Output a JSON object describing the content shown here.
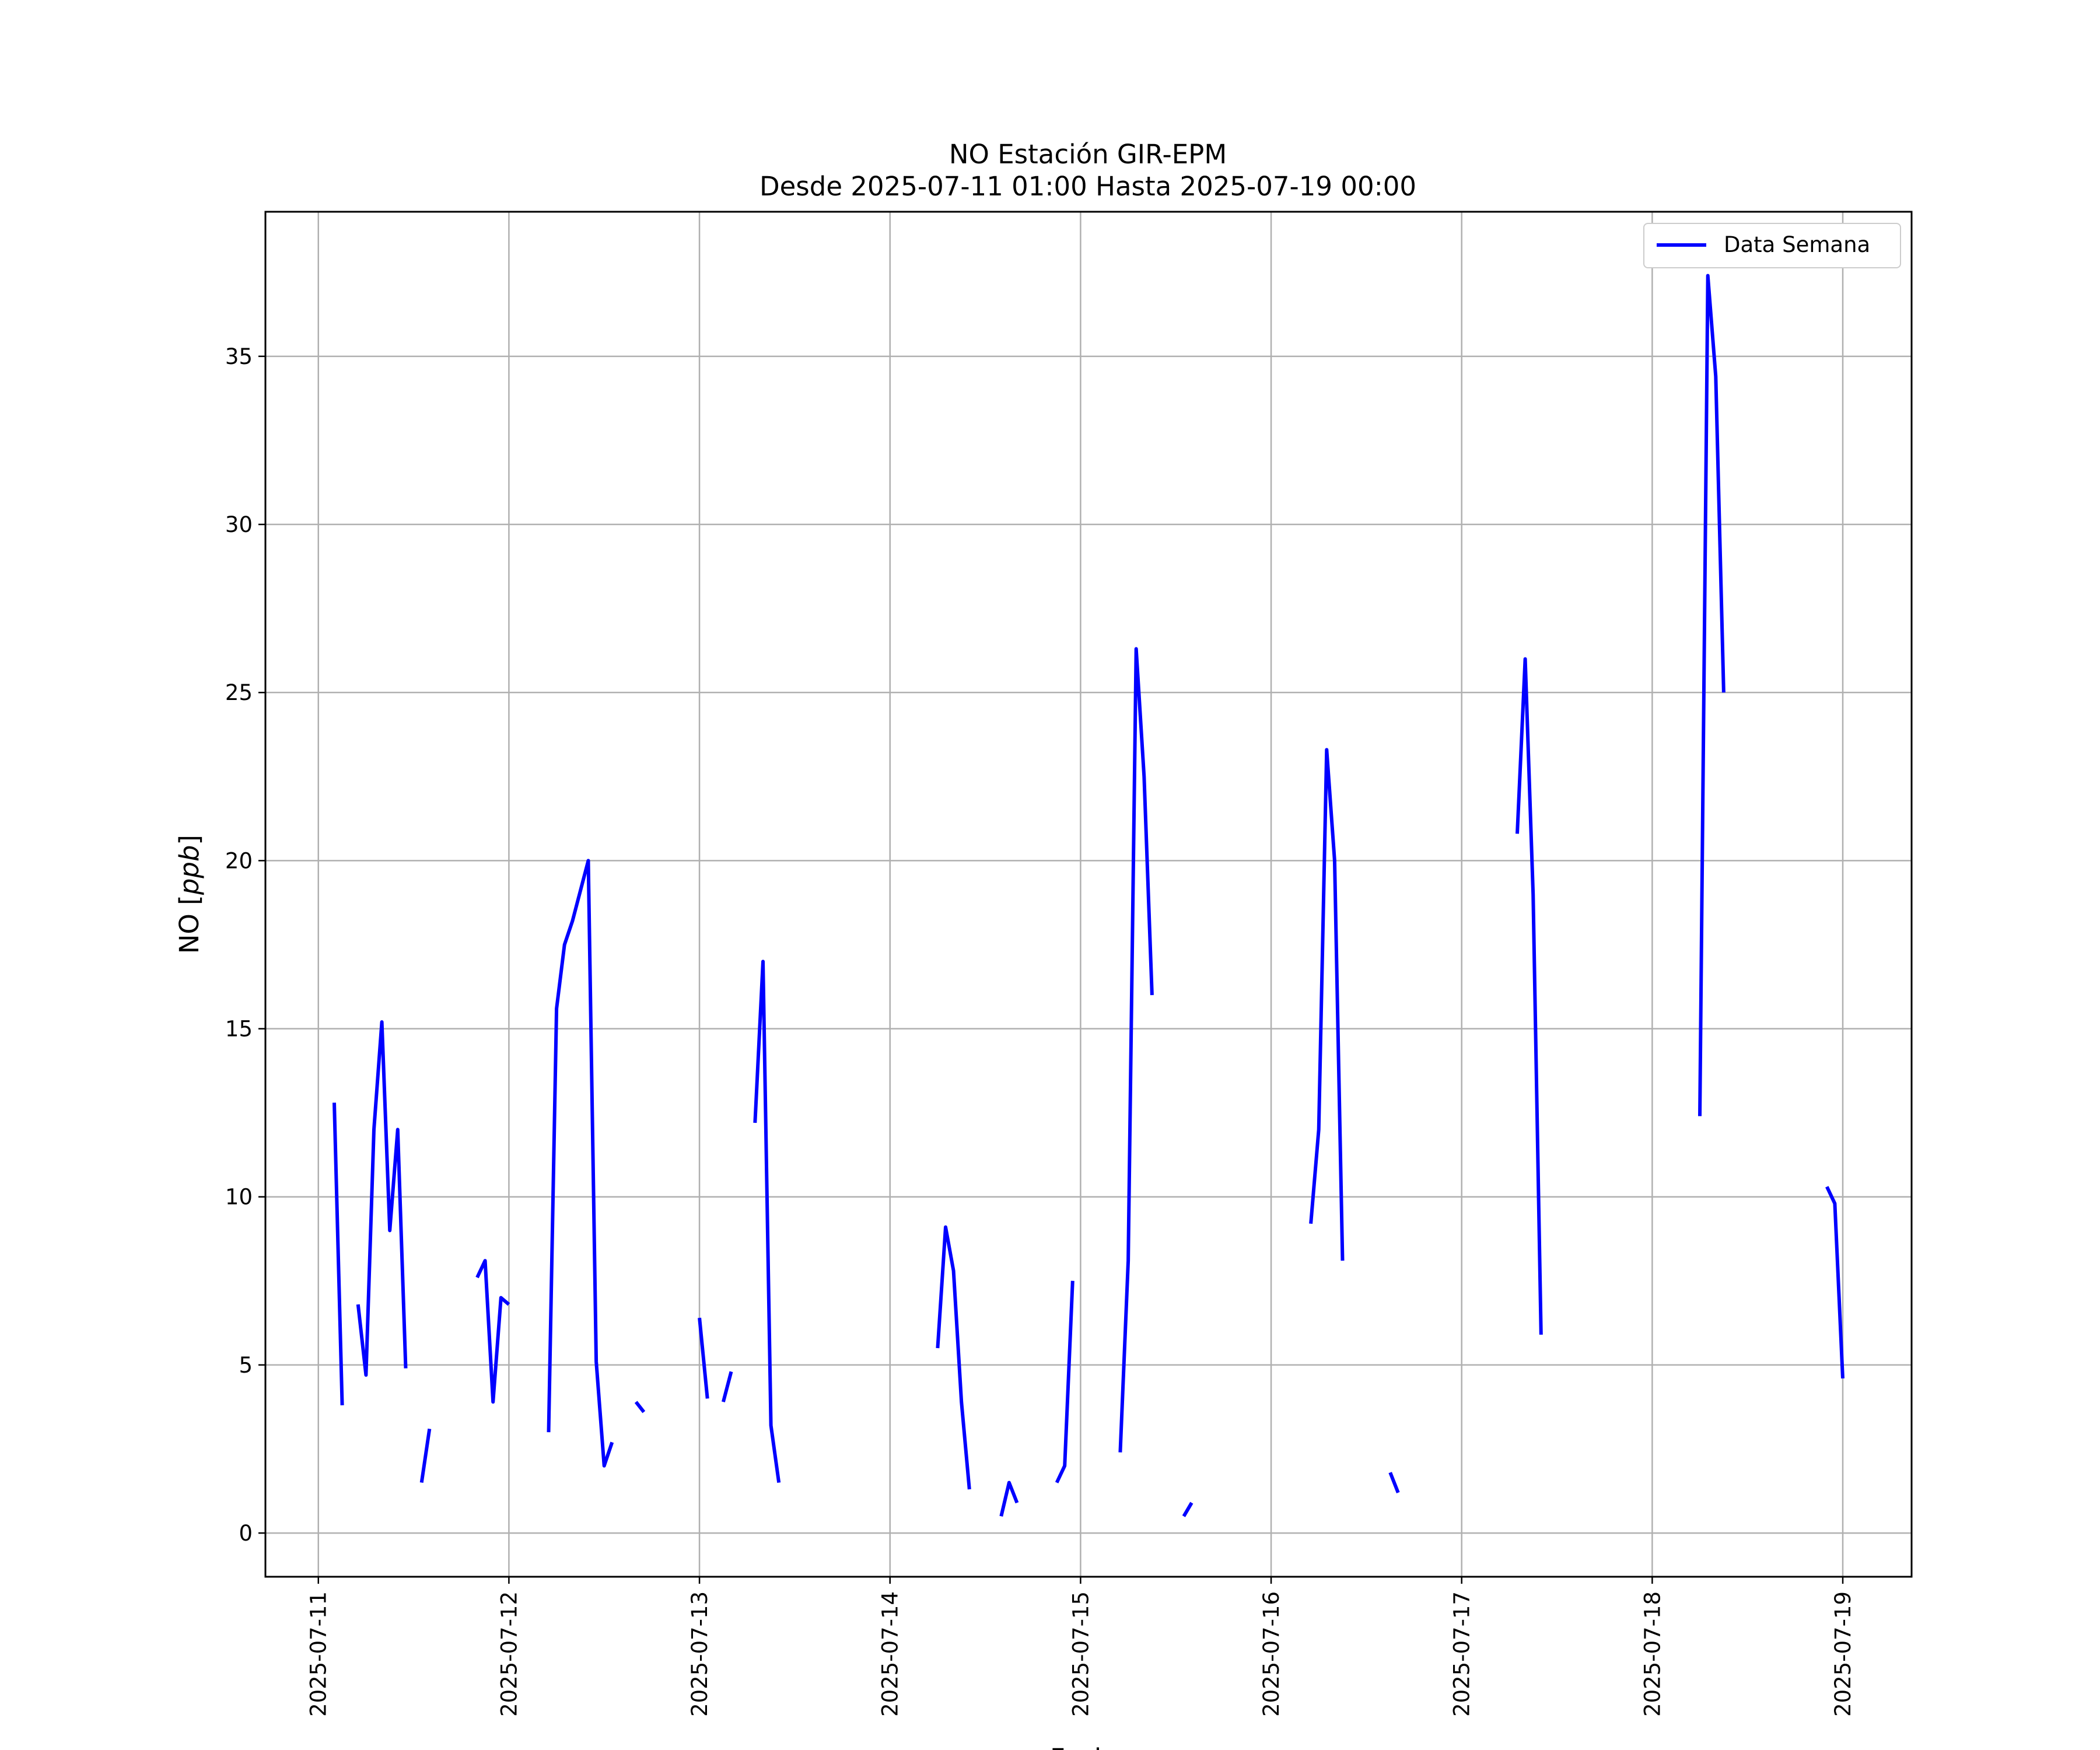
{
  "chart_data": {
    "type": "line",
    "title": "NO Estación GIR-EPM",
    "subtitle": "Desde 2025-07-11 01:00 Hasta 2025-07-19 00:00",
    "xlabel": "Fecha",
    "ylabel": "NO [ppb]",
    "ylabel_parts": {
      "prefix": "NO [",
      "unit": "ppb",
      "suffix": "]"
    },
    "x_type": "datetime",
    "xlim": [
      "2025-07-10 17:20",
      "2025-07-19 08:40"
    ],
    "ylim": [
      -1.3,
      39.3
    ],
    "x_ticks": [
      "2025-07-11",
      "2025-07-12",
      "2025-07-13",
      "2025-07-14",
      "2025-07-15",
      "2025-07-16",
      "2025-07-17",
      "2025-07-18",
      "2025-07-19"
    ],
    "y_ticks": [
      0,
      5,
      10,
      15,
      20,
      25,
      30,
      35
    ],
    "y_tick_labels": [
      "0",
      "5",
      "10",
      "15",
      "20",
      "25",
      "30",
      "35"
    ],
    "grid": true,
    "legend_position": "top-right",
    "series": [
      {
        "name": "Data Semana",
        "color": "#0000ff",
        "segments": [
          [
            [
              "2025-07-11 02:00",
              12.8
            ],
            [
              "2025-07-11 03:00",
              3.8
            ]
          ],
          [
            [
              "2025-07-11 05:00",
              6.8
            ],
            [
              "2025-07-11 06:00",
              4.7
            ],
            [
              "2025-07-11 07:00",
              12.0
            ],
            [
              "2025-07-11 08:00",
              15.2
            ],
            [
              "2025-07-11 09:00",
              9.0
            ],
            [
              "2025-07-11 10:00",
              12.0
            ],
            [
              "2025-07-11 11:00",
              4.9
            ]
          ],
          [
            [
              "2025-07-11 13:00",
              1.5
            ],
            [
              "2025-07-11 14:00",
              3.1
            ]
          ],
          [
            [
              "2025-07-11 20:00",
              7.6
            ],
            [
              "2025-07-11 21:00",
              8.1
            ],
            [
              "2025-07-11 22:00",
              3.9
            ],
            [
              "2025-07-11 23:00",
              7.0
            ],
            [
              "2025-07-12 00:00",
              6.8
            ]
          ],
          [
            [
              "2025-07-12 05:00",
              3.0
            ],
            [
              "2025-07-12 06:00",
              15.6
            ],
            [
              "2025-07-12 07:00",
              17.5
            ],
            [
              "2025-07-12 08:00",
              18.2
            ],
            [
              "2025-07-12 10:00",
              20.0
            ],
            [
              "2025-07-12 11:00",
              5.1
            ],
            [
              "2025-07-12 12:00",
              2.0
            ],
            [
              "2025-07-12 13:00",
              2.7
            ]
          ],
          [
            [
              "2025-07-12 16:00",
              3.9
            ],
            [
              "2025-07-12 17:00",
              3.6
            ]
          ],
          [
            [
              "2025-07-13 00:00",
              6.4
            ],
            [
              "2025-07-13 01:00",
              4.0
            ]
          ],
          [
            [
              "2025-07-13 03:00",
              3.9
            ],
            [
              "2025-07-13 04:00",
              4.8
            ]
          ],
          [
            [
              "2025-07-13 07:00",
              12.2
            ],
            [
              "2025-07-13 08:00",
              17.0
            ],
            [
              "2025-07-13 09:00",
              3.2
            ],
            [
              "2025-07-13 10:00",
              1.5
            ]
          ],
          [
            [
              "2025-07-14 06:00",
              5.5
            ],
            [
              "2025-07-14 07:00",
              9.1
            ],
            [
              "2025-07-14 08:00",
              7.8
            ],
            [
              "2025-07-14 09:00",
              3.9
            ],
            [
              "2025-07-14 10:00",
              1.3
            ]
          ],
          [
            [
              "2025-07-14 14:00",
              0.5
            ],
            [
              "2025-07-14 15:00",
              1.5
            ],
            [
              "2025-07-14 16:00",
              0.9
            ]
          ],
          [
            [
              "2025-07-14 21:00",
              1.5
            ],
            [
              "2025-07-14 22:00",
              2.0
            ],
            [
              "2025-07-14 23:00",
              7.5
            ]
          ],
          [
            [
              "2025-07-15 05:00",
              2.4
            ],
            [
              "2025-07-15 06:00",
              8.1
            ],
            [
              "2025-07-15 07:00",
              26.3
            ],
            [
              "2025-07-15 08:00",
              22.5
            ],
            [
              "2025-07-15 09:00",
              16.0
            ]
          ],
          [
            [
              "2025-07-15 13:00",
              0.5
            ],
            [
              "2025-07-15 14:00",
              0.9
            ]
          ],
          [
            [
              "2025-07-16 05:00",
              9.2
            ],
            [
              "2025-07-16 06:00",
              12.0
            ],
            [
              "2025-07-16 07:00",
              23.3
            ],
            [
              "2025-07-16 08:00",
              20.0
            ],
            [
              "2025-07-16 09:00",
              8.1
            ]
          ],
          [
            [
              "2025-07-16 15:00",
              1.8
            ],
            [
              "2025-07-16 16:00",
              1.2
            ]
          ],
          [
            [
              "2025-07-17 07:00",
              20.8
            ],
            [
              "2025-07-17 08:00",
              26.0
            ],
            [
              "2025-07-17 09:00",
              19.0
            ],
            [
              "2025-07-17 10:00",
              5.9
            ]
          ],
          [
            [
              "2025-07-18 06:00",
              12.4
            ],
            [
              "2025-07-18 07:00",
              37.4
            ],
            [
              "2025-07-18 08:00",
              34.4
            ],
            [
              "2025-07-18 09:00",
              25.0
            ]
          ],
          [
            [
              "2025-07-18 22:00",
              10.3
            ],
            [
              "2025-07-18 23:00",
              9.8
            ],
            [
              "2025-07-19 00:00",
              4.6
            ]
          ]
        ]
      }
    ]
  }
}
